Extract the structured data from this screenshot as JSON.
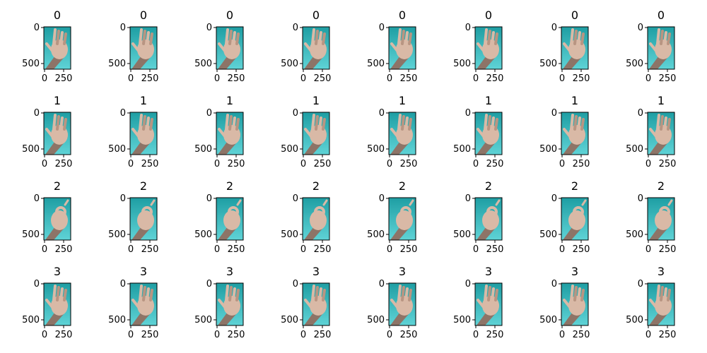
{
  "figure": {
    "panels": [
      {
        "title": "0",
        "y_ticks": [
          "0",
          "500"
        ],
        "x_ticks": [
          "0",
          "250"
        ],
        "photo": "hand-open-palm"
      },
      {
        "title": "0",
        "y_ticks": [
          "0",
          "500"
        ],
        "x_ticks": [
          "0",
          "250"
        ],
        "photo": "hand-open-palm"
      },
      {
        "title": "0",
        "y_ticks": [
          "0",
          "500"
        ],
        "x_ticks": [
          "0",
          "250"
        ],
        "photo": "hand-open-palm"
      },
      {
        "title": "0",
        "y_ticks": [
          "0",
          "500"
        ],
        "x_ticks": [
          "0",
          "250"
        ],
        "photo": "hand-open-palm"
      },
      {
        "title": "0",
        "y_ticks": [
          "0",
          "500"
        ],
        "x_ticks": [
          "0",
          "250"
        ],
        "photo": "hand-open-palm"
      },
      {
        "title": "0",
        "y_ticks": [
          "0",
          "500"
        ],
        "x_ticks": [
          "0",
          "250"
        ],
        "photo": "hand-open-palm"
      },
      {
        "title": "0",
        "y_ticks": [
          "0",
          "500"
        ],
        "x_ticks": [
          "0",
          "250"
        ],
        "photo": "hand-open-palm"
      },
      {
        "title": "0",
        "y_ticks": [
          "0",
          "500"
        ],
        "x_ticks": [
          "0",
          "250"
        ],
        "photo": "hand-open-palm"
      },
      {
        "title": "1",
        "y_ticks": [
          "0",
          "500"
        ],
        "x_ticks": [
          "0",
          "250"
        ],
        "photo": "hand-open-palm"
      },
      {
        "title": "1",
        "y_ticks": [
          "0",
          "500"
        ],
        "x_ticks": [
          "0",
          "250"
        ],
        "photo": "hand-open-palm"
      },
      {
        "title": "1",
        "y_ticks": [
          "0",
          "500"
        ],
        "x_ticks": [
          "0",
          "250"
        ],
        "photo": "hand-open-palm"
      },
      {
        "title": "1",
        "y_ticks": [
          "0",
          "500"
        ],
        "x_ticks": [
          "0",
          "250"
        ],
        "photo": "hand-open-palm"
      },
      {
        "title": "1",
        "y_ticks": [
          "0",
          "500"
        ],
        "x_ticks": [
          "0",
          "250"
        ],
        "photo": "hand-open-palm"
      },
      {
        "title": "1",
        "y_ticks": [
          "0",
          "500"
        ],
        "x_ticks": [
          "0",
          "250"
        ],
        "photo": "hand-open-palm"
      },
      {
        "title": "1",
        "y_ticks": [
          "0",
          "500"
        ],
        "x_ticks": [
          "0",
          "250"
        ],
        "photo": "hand-open-palm"
      },
      {
        "title": "1",
        "y_ticks": [
          "0",
          "500"
        ],
        "x_ticks": [
          "0",
          "250"
        ],
        "photo": "hand-open-palm"
      },
      {
        "title": "2",
        "y_ticks": [
          "0",
          "500"
        ],
        "x_ticks": [
          "0",
          "250"
        ],
        "photo": "hand-ok-sign"
      },
      {
        "title": "2",
        "y_ticks": [
          "0",
          "500"
        ],
        "x_ticks": [
          "0",
          "250"
        ],
        "photo": "hand-ok-sign"
      },
      {
        "title": "2",
        "y_ticks": [
          "0",
          "500"
        ],
        "x_ticks": [
          "0",
          "250"
        ],
        "photo": "hand-ok-sign"
      },
      {
        "title": "2",
        "y_ticks": [
          "0",
          "500"
        ],
        "x_ticks": [
          "0",
          "250"
        ],
        "photo": "hand-ok-sign"
      },
      {
        "title": "2",
        "y_ticks": [
          "0",
          "500"
        ],
        "x_ticks": [
          "0",
          "250"
        ],
        "photo": "hand-ok-sign"
      },
      {
        "title": "2",
        "y_ticks": [
          "0",
          "500"
        ],
        "x_ticks": [
          "0",
          "250"
        ],
        "photo": "hand-ok-sign"
      },
      {
        "title": "2",
        "y_ticks": [
          "0",
          "500"
        ],
        "x_ticks": [
          "0",
          "250"
        ],
        "photo": "hand-ok-sign"
      },
      {
        "title": "2",
        "y_ticks": [
          "0",
          "500"
        ],
        "x_ticks": [
          "0",
          "250"
        ],
        "photo": "hand-ok-sign"
      },
      {
        "title": "3",
        "y_ticks": [
          "0",
          "500"
        ],
        "x_ticks": [
          "0",
          "250"
        ],
        "photo": "hand-open-palm"
      },
      {
        "title": "3",
        "y_ticks": [
          "0",
          "500"
        ],
        "x_ticks": [
          "0",
          "250"
        ],
        "photo": "hand-open-palm"
      },
      {
        "title": "3",
        "y_ticks": [
          "0",
          "500"
        ],
        "x_ticks": [
          "0",
          "250"
        ],
        "photo": "hand-open-palm"
      },
      {
        "title": "3",
        "y_ticks": [
          "0",
          "500"
        ],
        "x_ticks": [
          "0",
          "250"
        ],
        "photo": "hand-open-palm"
      },
      {
        "title": "3",
        "y_ticks": [
          "0",
          "500"
        ],
        "x_ticks": [
          "0",
          "250"
        ],
        "photo": "hand-open-palm"
      },
      {
        "title": "3",
        "y_ticks": [
          "0",
          "500"
        ],
        "x_ticks": [
          "0",
          "250"
        ],
        "photo": "hand-open-palm"
      },
      {
        "title": "3",
        "y_ticks": [
          "0",
          "500"
        ],
        "x_ticks": [
          "0",
          "250"
        ],
        "photo": "hand-open-palm"
      },
      {
        "title": "3",
        "y_ticks": [
          "0",
          "500"
        ],
        "x_ticks": [
          "0",
          "250"
        ],
        "photo": "hand-open-palm"
      }
    ],
    "colors": {
      "teal_light": "#5fd3d6",
      "teal_dark": "#1e9ea3",
      "skin": "#d9b9a6",
      "skin_shadow": "#b89582",
      "arm": "#8d7467",
      "axis": "#000000"
    }
  }
}
